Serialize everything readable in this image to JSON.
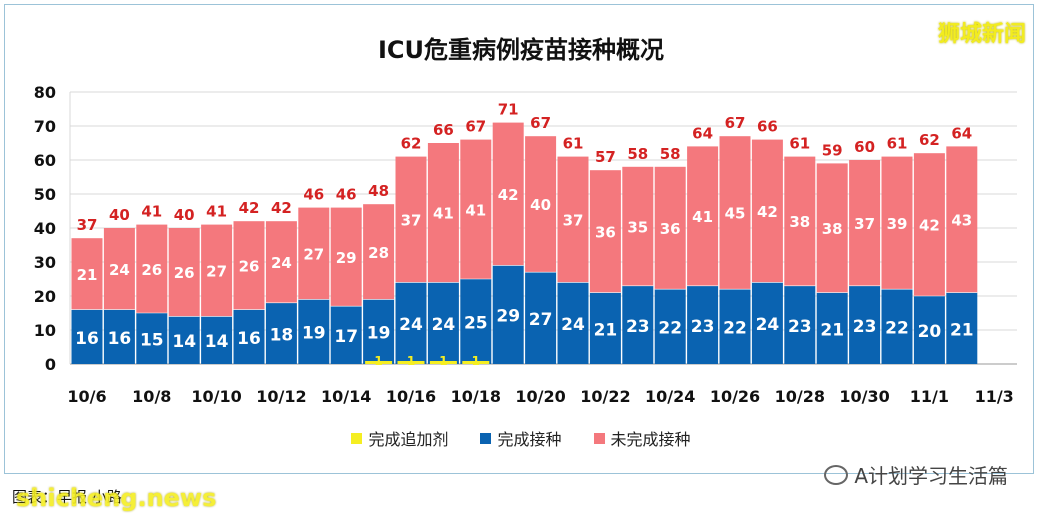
{
  "brand": "狮城新闻",
  "credit": "图表：早报 小路",
  "watermark": "shicheng.news",
  "wechat_label": "A计划学习生活篇",
  "legend_labels": [
    "完成追加剂",
    "完成接种",
    "未完成接种"
  ],
  "colors": {
    "booster": "#f5ee22",
    "vaccinated": "#0a63b1",
    "unvaccinated": "#f4787d",
    "total_label": "#d42222"
  },
  "chart_data": {
    "type": "bar",
    "stacked": true,
    "title": "ICU危重病例疫苗接种概况",
    "categories": [
      "10/6",
      "10/7",
      "10/8",
      "10/9",
      "10/10",
      "10/11",
      "10/12",
      "10/13",
      "10/14",
      "10/15",
      "10/16",
      "10/17",
      "10/18",
      "10/19",
      "10/20",
      "10/21",
      "10/22",
      "10/23",
      "10/24",
      "10/25",
      "10/26",
      "10/27",
      "10/28",
      "10/29",
      "10/30",
      "10/31",
      "11/1",
      "11/2"
    ],
    "x_tick_labels": [
      "10/6",
      "10/8",
      "10/10",
      "10/12",
      "10/14",
      "10/16",
      "10/18",
      "10/20",
      "10/22",
      "10/24",
      "10/26",
      "10/28",
      "10/30",
      "11/1",
      "11/3"
    ],
    "series": [
      {
        "name": "完成追加剂",
        "values": [
          0,
          0,
          0,
          0,
          0,
          0,
          0,
          0,
          0,
          1,
          1,
          1,
          1,
          0,
          0,
          0,
          0,
          0,
          0,
          0,
          0,
          0,
          0,
          0,
          0,
          0,
          0,
          0
        ]
      },
      {
        "name": "完成接种",
        "values": [
          16,
          16,
          15,
          14,
          14,
          16,
          18,
          19,
          17,
          19,
          24,
          24,
          25,
          29,
          27,
          24,
          21,
          23,
          22,
          23,
          22,
          24,
          23,
          21,
          23,
          22,
          20,
          21
        ]
      },
      {
        "name": "未完成接种",
        "values": [
          21,
          24,
          26,
          26,
          27,
          26,
          24,
          27,
          29,
          28,
          37,
          41,
          41,
          42,
          40,
          37,
          36,
          35,
          36,
          41,
          45,
          42,
          38,
          38,
          37,
          39,
          42,
          43
        ]
      }
    ],
    "totals": [
      37,
      40,
      41,
      40,
      41,
      42,
      42,
      46,
      46,
      48,
      62,
      66,
      67,
      71,
      67,
      61,
      57,
      58,
      58,
      64,
      67,
      66,
      61,
      59,
      60,
      61,
      62,
      64
    ],
    "ylim": [
      0,
      80
    ],
    "y_ticks": [
      0,
      10,
      20,
      30,
      40,
      50,
      60,
      70,
      80
    ],
    "grid": true,
    "legend_position": "bottom"
  }
}
